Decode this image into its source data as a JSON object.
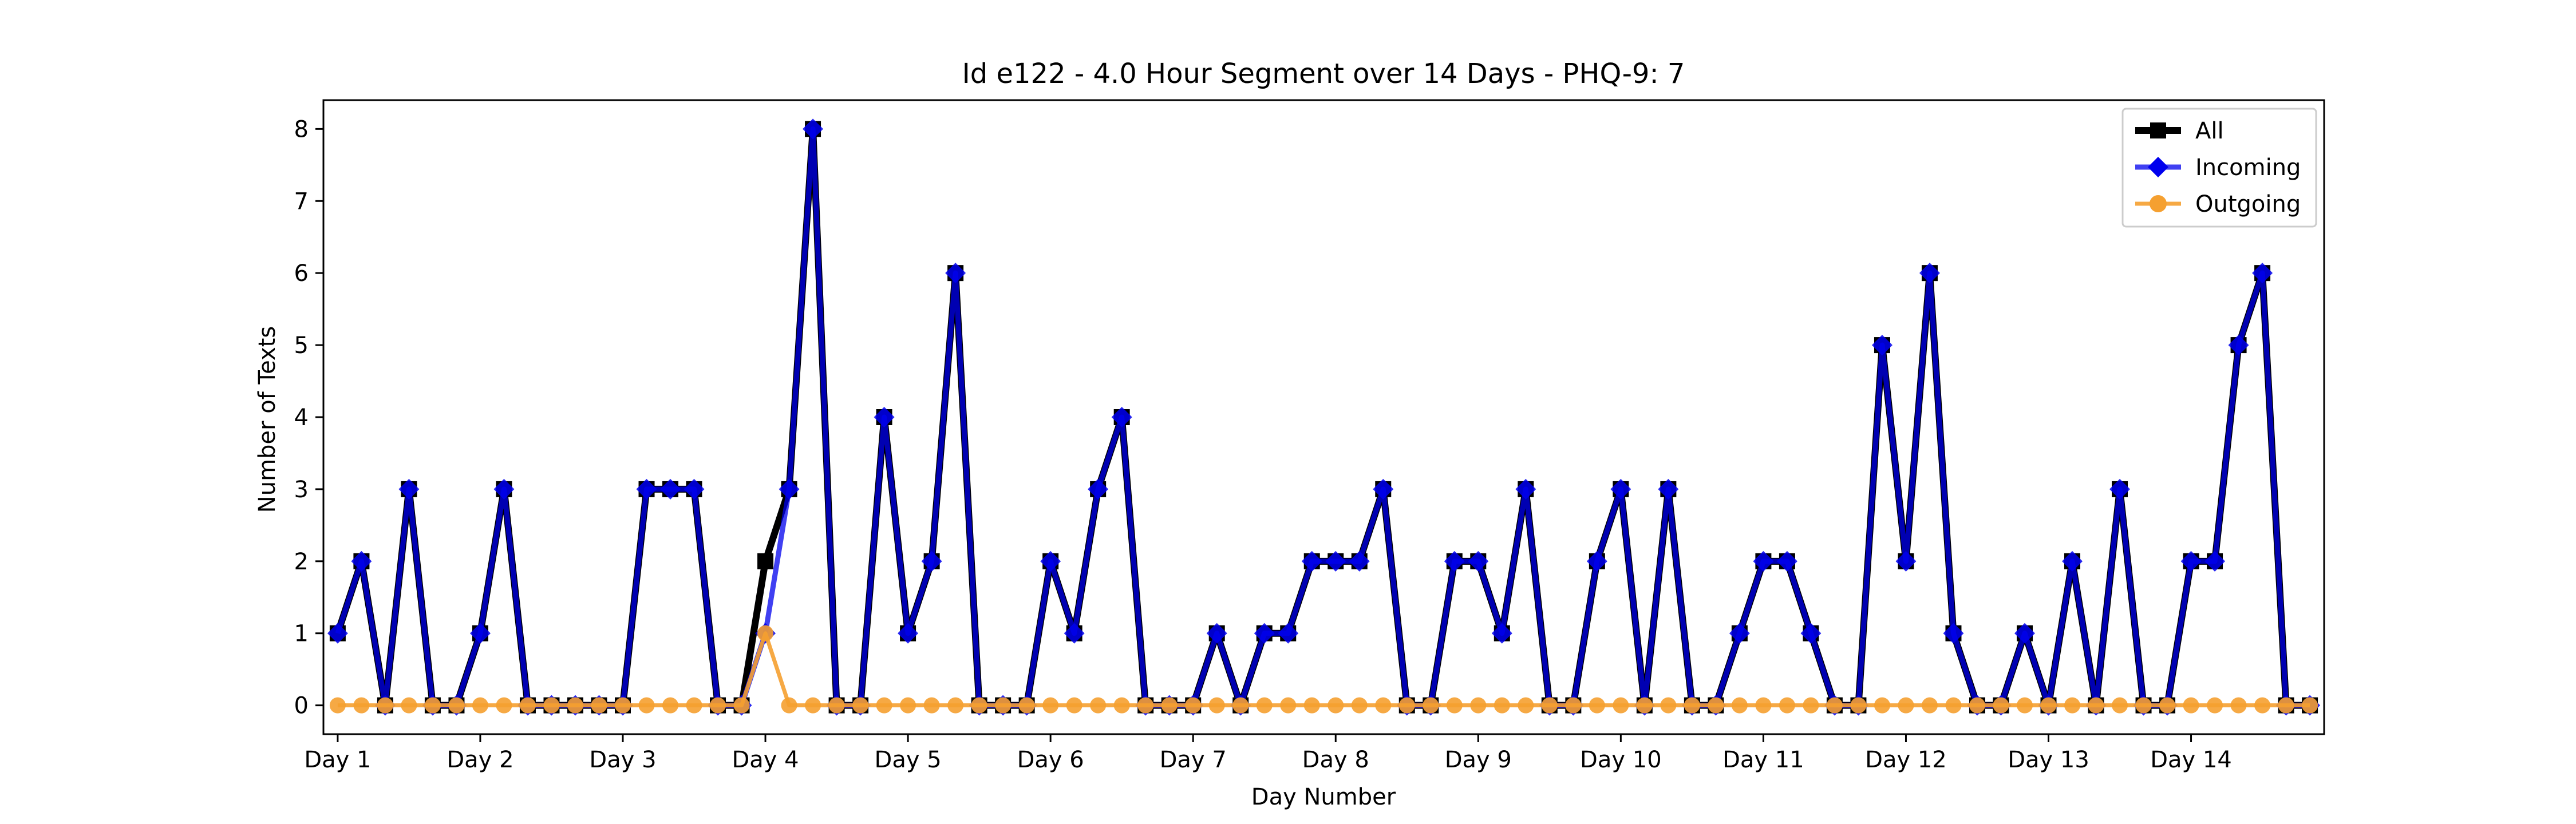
{
  "chart_data": {
    "type": "line",
    "title": "Id e122 - 4.0 Hour Segment over 14 Days - PHQ-9: 7",
    "xlabel": "Day Number",
    "ylabel": "Number of Texts",
    "xtick_labels": [
      "Day 1",
      "Day 2",
      "Day 3",
      "Day 4",
      "Day 5",
      "Day 6",
      "Day 7",
      "Day 8",
      "Day 9",
      "Day 10",
      "Day 11",
      "Day 12",
      "Day 13",
      "Day 14"
    ],
    "ytick_labels": [
      "0",
      "1",
      "2",
      "3",
      "4",
      "5",
      "6",
      "7",
      "8"
    ],
    "ylim": [
      -0.4,
      8.4
    ],
    "xlim": [
      -0.6,
      83.6
    ],
    "grid": false,
    "legend_position": "top-right",
    "series": [
      {
        "name": "All",
        "color": "#000000",
        "marker": "square",
        "values": [
          1,
          2,
          0,
          3,
          0,
          0,
          1,
          3,
          0,
          0,
          0,
          0,
          0,
          3,
          3,
          3,
          0,
          0,
          2,
          3,
          8,
          0,
          0,
          4,
          1,
          2,
          6,
          0,
          0,
          0,
          2,
          1,
          3,
          4,
          0,
          0,
          0,
          1,
          0,
          1,
          1,
          2,
          2,
          2,
          3,
          0,
          0,
          2,
          2,
          1,
          3,
          0,
          0,
          2,
          3,
          0,
          3,
          0,
          0,
          1,
          2,
          2,
          1,
          0,
          0,
          5,
          2,
          6,
          1,
          0,
          0,
          1,
          0,
          2,
          0,
          3,
          0,
          0,
          2,
          2,
          5,
          6,
          0,
          0
        ]
      },
      {
        "name": "Incoming",
        "color": "#0000ee",
        "marker": "diamond",
        "values": [
          1,
          2,
          0,
          3,
          0,
          0,
          1,
          3,
          0,
          0,
          0,
          0,
          0,
          3,
          3,
          3,
          0,
          0,
          1,
          3,
          8,
          0,
          0,
          4,
          1,
          2,
          6,
          0,
          0,
          0,
          2,
          1,
          3,
          4,
          0,
          0,
          0,
          1,
          0,
          1,
          1,
          2,
          2,
          2,
          3,
          0,
          0,
          2,
          2,
          1,
          3,
          0,
          0,
          2,
          3,
          0,
          3,
          0,
          0,
          1,
          2,
          2,
          1,
          0,
          0,
          5,
          2,
          6,
          1,
          0,
          0,
          1,
          0,
          2,
          0,
          3,
          0,
          0,
          2,
          2,
          5,
          6,
          0,
          0
        ]
      },
      {
        "name": "Outgoing",
        "color": "#f5a030",
        "marker": "circle",
        "values": [
          0,
          0,
          0,
          0,
          0,
          0,
          0,
          0,
          0,
          0,
          0,
          0,
          0,
          0,
          0,
          0,
          0,
          0,
          1,
          0,
          0,
          0,
          0,
          0,
          0,
          0,
          0,
          0,
          0,
          0,
          0,
          0,
          0,
          0,
          0,
          0,
          0,
          0,
          0,
          0,
          0,
          0,
          0,
          0,
          0,
          0,
          0,
          0,
          0,
          0,
          0,
          0,
          0,
          0,
          0,
          0,
          0,
          0,
          0,
          0,
          0,
          0,
          0,
          0,
          0,
          0,
          0,
          0,
          0,
          0,
          0,
          0,
          0,
          0,
          0,
          0,
          0,
          0,
          0,
          0,
          0,
          0,
          0,
          0
        ]
      }
    ]
  }
}
